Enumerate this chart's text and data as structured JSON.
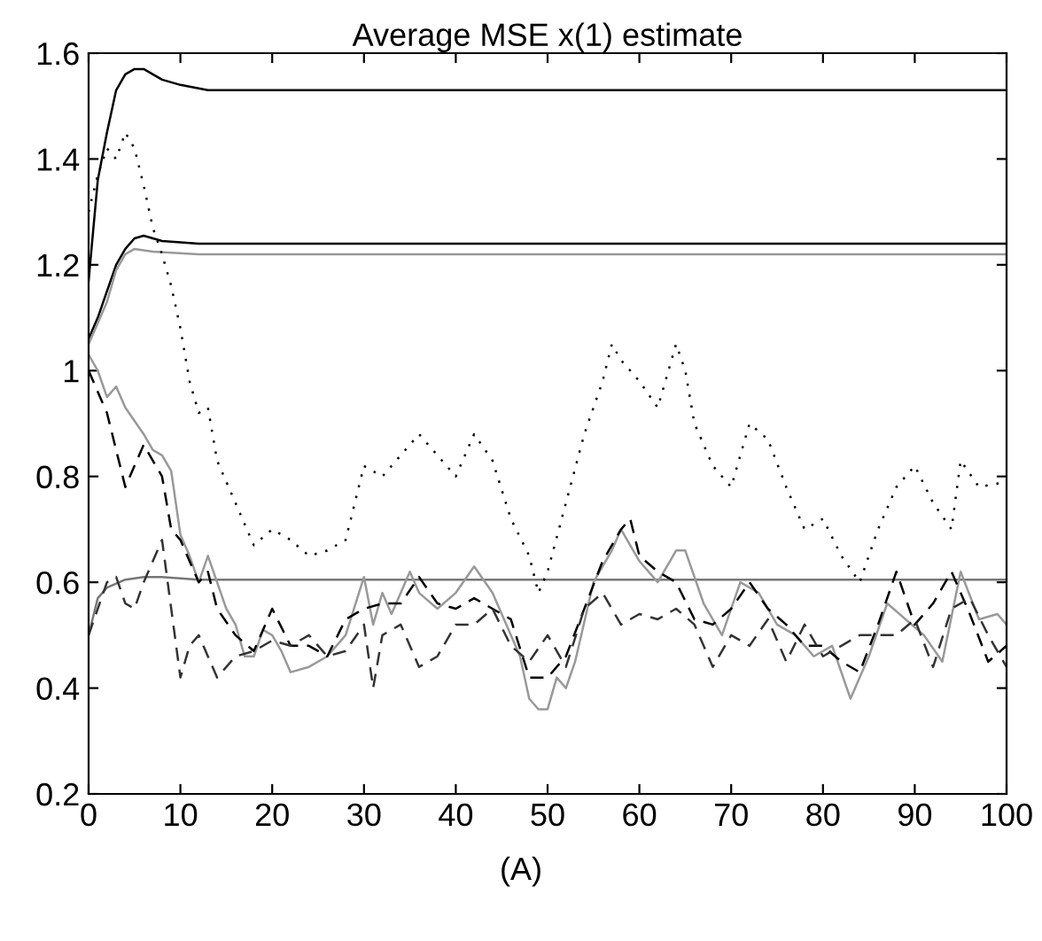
{
  "chart_data": {
    "type": "line",
    "title": "Average MSE x(1) estimate",
    "annotations": [
      "(A)"
    ],
    "xlim": [
      0,
      100
    ],
    "xticks": [
      0,
      10,
      20,
      30,
      40,
      50,
      60,
      70,
      80,
      90,
      100
    ],
    "ylim": [
      0.2,
      1.6
    ],
    "yticks": [
      0.2,
      0.4,
      0.6,
      0.8,
      1,
      1.2,
      1.4,
      1.6
    ],
    "grid": false,
    "legend": false,
    "series": [
      {
        "color": "#000000",
        "line_style": "solid",
        "x": [
          0,
          1,
          2,
          3,
          4,
          5,
          6,
          8,
          10,
          13,
          100
        ],
        "values": [
          1.17,
          1.36,
          1.45,
          1.53,
          1.56,
          1.57,
          1.57,
          1.55,
          1.54,
          1.53,
          1.53
        ]
      },
      {
        "color": "#000000",
        "line_style": "solid",
        "x": [
          0,
          1,
          2,
          3,
          4,
          5,
          6,
          8,
          12,
          100
        ],
        "values": [
          1.06,
          1.1,
          1.15,
          1.2,
          1.23,
          1.25,
          1.255,
          1.245,
          1.24,
          1.24
        ]
      },
      {
        "color": "#999999",
        "line_style": "solid",
        "x": [
          0,
          2,
          3,
          4,
          5,
          7,
          12,
          100
        ],
        "values": [
          1.05,
          1.13,
          1.19,
          1.22,
          1.23,
          1.225,
          1.22,
          1.22
        ]
      },
      {
        "color": "#777777",
        "line_style": "solid",
        "x": [
          0,
          1,
          2,
          4,
          6,
          8,
          12,
          100
        ],
        "values": [
          0.5,
          0.57,
          0.59,
          0.605,
          0.61,
          0.61,
          0.605,
          0.605
        ]
      },
      {
        "color": "#000000",
        "line_style": "dotted",
        "x": [
          0,
          1,
          2,
          3,
          4,
          5,
          6,
          7,
          8,
          9,
          10,
          11,
          12,
          13,
          14,
          16,
          18,
          20,
          22,
          24,
          26,
          28,
          30,
          32,
          34,
          36,
          38,
          40,
          42,
          44,
          46,
          48,
          49,
          50,
          52,
          54,
          56,
          57,
          58,
          60,
          62,
          64,
          65,
          66,
          68,
          70,
          72,
          74,
          76,
          78,
          80,
          82,
          84,
          86,
          88,
          90,
          92,
          94,
          95,
          97,
          100
        ],
        "values": [
          1.3,
          1.37,
          1.42,
          1.4,
          1.45,
          1.42,
          1.35,
          1.27,
          1.22,
          1.16,
          1.08,
          0.98,
          0.92,
          0.93,
          0.83,
          0.75,
          0.67,
          0.7,
          0.68,
          0.65,
          0.66,
          0.68,
          0.82,
          0.8,
          0.84,
          0.88,
          0.84,
          0.8,
          0.88,
          0.83,
          0.72,
          0.65,
          0.58,
          0.62,
          0.75,
          0.88,
          0.98,
          1.05,
          1.02,
          0.98,
          0.93,
          1.05,
          1.0,
          0.9,
          0.82,
          0.78,
          0.9,
          0.87,
          0.78,
          0.7,
          0.72,
          0.65,
          0.6,
          0.7,
          0.78,
          0.82,
          0.75,
          0.7,
          0.83,
          0.78,
          0.79
        ]
      },
      {
        "color": "#999999",
        "line_style": "solid",
        "x": [
          0,
          1,
          2,
          3,
          4,
          6,
          7,
          8,
          9,
          10,
          11,
          12,
          13,
          14,
          15,
          16,
          17,
          18,
          19,
          20,
          21,
          22,
          24,
          26,
          28,
          30,
          31,
          32,
          33,
          35,
          36,
          38,
          40,
          42,
          44,
          46,
          47,
          48,
          49,
          50,
          51,
          52,
          53,
          55,
          56,
          57,
          58,
          60,
          62,
          64,
          65,
          67,
          69,
          71,
          73,
          75,
          77,
          79,
          81,
          83,
          85,
          87,
          89,
          91,
          93,
          95,
          97,
          99,
          100
        ],
        "values": [
          1.03,
          1.0,
          0.95,
          0.97,
          0.93,
          0.88,
          0.85,
          0.84,
          0.81,
          0.69,
          0.65,
          0.6,
          0.65,
          0.6,
          0.55,
          0.52,
          0.46,
          0.46,
          0.51,
          0.5,
          0.47,
          0.43,
          0.44,
          0.46,
          0.5,
          0.61,
          0.52,
          0.58,
          0.54,
          0.62,
          0.58,
          0.55,
          0.58,
          0.63,
          0.58,
          0.5,
          0.46,
          0.38,
          0.36,
          0.36,
          0.42,
          0.4,
          0.45,
          0.6,
          0.63,
          0.66,
          0.7,
          0.64,
          0.6,
          0.66,
          0.66,
          0.56,
          0.5,
          0.6,
          0.58,
          0.52,
          0.5,
          0.46,
          0.48,
          0.38,
          0.46,
          0.56,
          0.53,
          0.5,
          0.45,
          0.62,
          0.53,
          0.54,
          0.52
        ]
      },
      {
        "color": "#000000",
        "line_style": "dashed",
        "x": [
          0,
          1,
          2,
          3,
          4,
          6,
          8,
          9,
          10,
          12,
          13,
          14,
          16,
          18,
          20,
          22,
          24,
          26,
          28,
          30,
          32,
          34,
          36,
          38,
          40,
          42,
          44,
          46,
          48,
          50,
          52,
          54,
          56,
          58,
          59,
          60,
          62,
          64,
          66,
          68,
          70,
          72,
          74,
          76,
          78,
          80,
          82,
          84,
          86,
          88,
          90,
          92,
          94,
          96,
          98,
          100
        ],
        "values": [
          1.0,
          0.96,
          0.92,
          0.85,
          0.78,
          0.86,
          0.8,
          0.7,
          0.68,
          0.6,
          0.62,
          0.55,
          0.5,
          0.47,
          0.55,
          0.48,
          0.48,
          0.46,
          0.53,
          0.55,
          0.56,
          0.56,
          0.61,
          0.56,
          0.55,
          0.57,
          0.55,
          0.53,
          0.42,
          0.42,
          0.46,
          0.55,
          0.64,
          0.7,
          0.72,
          0.65,
          0.62,
          0.6,
          0.53,
          0.52,
          0.55,
          0.6,
          0.55,
          0.52,
          0.48,
          0.48,
          0.45,
          0.43,
          0.52,
          0.62,
          0.52,
          0.56,
          0.62,
          0.54,
          0.45,
          0.48
        ]
      },
      {
        "color": "#333333",
        "line_style": "dashed",
        "x": [
          0,
          2,
          3,
          4,
          5,
          6,
          8,
          10,
          11,
          12,
          14,
          16,
          18,
          20,
          22,
          24,
          26,
          28,
          30,
          31,
          32,
          34,
          36,
          38,
          40,
          42,
          44,
          46,
          48,
          50,
          52,
          54,
          56,
          58,
          60,
          62,
          64,
          66,
          68,
          70,
          72,
          74,
          76,
          78,
          80,
          82,
          84,
          86,
          88,
          90,
          92,
          94,
          96,
          98,
          100
        ],
        "values": [
          0.5,
          0.6,
          0.61,
          0.56,
          0.55,
          0.6,
          0.68,
          0.42,
          0.48,
          0.5,
          0.42,
          0.46,
          0.47,
          0.49,
          0.48,
          0.5,
          0.46,
          0.47,
          0.52,
          0.4,
          0.5,
          0.52,
          0.44,
          0.46,
          0.52,
          0.52,
          0.55,
          0.48,
          0.45,
          0.5,
          0.44,
          0.55,
          0.58,
          0.52,
          0.54,
          0.53,
          0.55,
          0.52,
          0.44,
          0.5,
          0.48,
          0.53,
          0.45,
          0.52,
          0.46,
          0.48,
          0.5,
          0.5,
          0.5,
          0.53,
          0.44,
          0.55,
          0.57,
          0.5,
          0.44
        ]
      }
    ]
  }
}
